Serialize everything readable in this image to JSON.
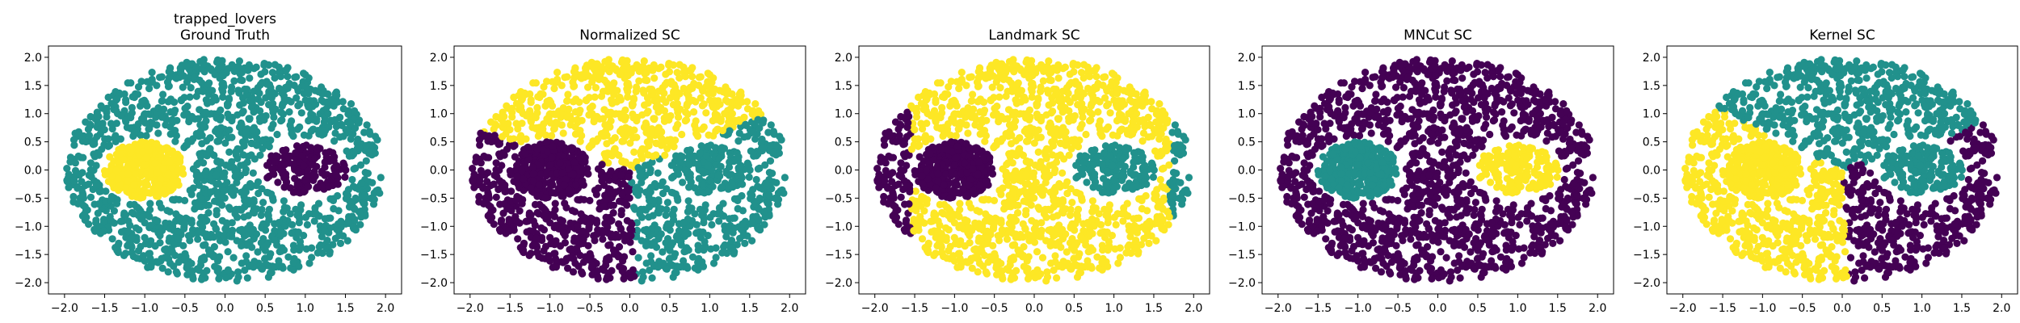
{
  "colors": {
    "purple": "#440154",
    "teal": "#21918c",
    "yellow": "#fde725"
  },
  "chart_data": [
    {
      "type": "scatter",
      "dataset": "trapped_lovers",
      "title": "trapped_lovers",
      "subtitle": "Ground Truth",
      "xlim": [
        -2.2,
        2.2
      ],
      "ylim": [
        -2.2,
        2.2
      ],
      "xticks": [
        "-2.0",
        "-1.5",
        "-1.0",
        "-0.5",
        "0.0",
        "0.5",
        "1.0",
        "1.5",
        "2.0"
      ],
      "yticks": [
        "2.0",
        "1.5",
        "1.0",
        "0.5",
        "0.0",
        "-0.5",
        "-1.0",
        "-1.5",
        "-2.0"
      ],
      "grid": false,
      "regions": [
        {
          "shape": "outer-ring",
          "center": [
            0,
            0
          ],
          "radius": 2.0,
          "color": "teal"
        },
        {
          "shape": "blob",
          "center": [
            -1.0,
            0.0
          ],
          "radius": 0.5,
          "color": "yellow"
        },
        {
          "shape": "blob-sparse",
          "center": [
            1.0,
            0.0
          ],
          "radius": 0.5,
          "color": "purple"
        }
      ]
    },
    {
      "type": "scatter",
      "title": "Normalized SC",
      "xlim": [
        -2.2,
        2.2
      ],
      "ylim": [
        -2.2,
        2.2
      ],
      "xticks": [
        "-2.0",
        "-1.5",
        "-1.0",
        "-0.5",
        "0.0",
        "0.5",
        "1.0",
        "1.5",
        "2.0"
      ],
      "yticks": [
        "2.0",
        "1.5",
        "1.0",
        "0.5",
        "0.0",
        "-0.5",
        "-1.0",
        "-1.5",
        "-2.0"
      ],
      "grid": false,
      "regions": [
        {
          "shape": "sector",
          "from_deg": 30,
          "to_deg": 160,
          "color": "yellow"
        },
        {
          "shape": "sector",
          "from_deg": 160,
          "to_deg": 272,
          "color": "purple"
        },
        {
          "shape": "sector",
          "from_deg": 272,
          "to_deg": 390,
          "color": "teal"
        },
        {
          "shape": "blob",
          "center": [
            -1.0,
            0.0
          ],
          "radius": 0.5,
          "color": "purple"
        },
        {
          "shape": "blob",
          "center": [
            1.0,
            0.0
          ],
          "radius": 0.5,
          "color": "teal"
        }
      ]
    },
    {
      "type": "scatter",
      "title": "Landmark SC",
      "xlim": [
        -2.2,
        2.2
      ],
      "ylim": [
        -2.2,
        2.2
      ],
      "xticks": [
        "-2.0",
        "-1.5",
        "-1.0",
        "-0.5",
        "0.0",
        "0.5",
        "1.0",
        "1.5",
        "2.0"
      ],
      "yticks": [
        "2.0",
        "1.5",
        "1.0",
        "0.5",
        "0.0",
        "-0.5",
        "-1.0",
        "-1.5",
        "-2.0"
      ],
      "grid": false,
      "regions": [
        {
          "shape": "outer-ring",
          "center": [
            0,
            0
          ],
          "radius": 2.0,
          "color": "yellow"
        },
        {
          "shape": "x-band",
          "from_x": -2.1,
          "to_x": -1.55,
          "color": "purple"
        },
        {
          "shape": "x-band",
          "from_x": 1.7,
          "to_x": 2.1,
          "color": "teal"
        },
        {
          "shape": "blob",
          "center": [
            -1.0,
            0.0
          ],
          "radius": 0.5,
          "color": "purple"
        },
        {
          "shape": "blob-sparse",
          "center": [
            1.0,
            0.0
          ],
          "radius": 0.55,
          "color": "teal"
        }
      ]
    },
    {
      "type": "scatter",
      "title": "MNCut SC",
      "xlim": [
        -2.2,
        2.2
      ],
      "ylim": [
        -2.2,
        2.2
      ],
      "xticks": [
        "-2.0",
        "-1.5",
        "-1.0",
        "-0.5",
        "0.0",
        "0.5",
        "1.0",
        "1.5",
        "2.0"
      ],
      "yticks": [
        "2.0",
        "1.5",
        "1.0",
        "0.5",
        "0.0",
        "-0.5",
        "-1.0",
        "-1.5",
        "-2.0"
      ],
      "grid": false,
      "regions": [
        {
          "shape": "outer-ring",
          "center": [
            0,
            0
          ],
          "radius": 2.0,
          "color": "purple"
        },
        {
          "shape": "blob",
          "center": [
            -1.0,
            0.0
          ],
          "radius": 0.5,
          "color": "teal"
        },
        {
          "shape": "blob-sparse",
          "center": [
            1.0,
            0.0
          ],
          "radius": 0.5,
          "color": "yellow"
        }
      ]
    },
    {
      "type": "scatter",
      "title": "Kernel SC",
      "xlim": [
        -2.2,
        2.2
      ],
      "ylim": [
        -2.2,
        2.2
      ],
      "xticks": [
        "-2.0",
        "-1.5",
        "-1.0",
        "-0.5",
        "0.0",
        "0.5",
        "1.0",
        "1.5",
        "2.0"
      ],
      "yticks": [
        "2.0",
        "1.5",
        "1.0",
        "0.5",
        "0.0",
        "-0.5",
        "-1.0",
        "-1.5",
        "-2.0"
      ],
      "grid": false,
      "regions": [
        {
          "shape": "sector",
          "from_deg": 25,
          "to_deg": 145,
          "color": "teal"
        },
        {
          "shape": "sector",
          "from_deg": 145,
          "to_deg": 272,
          "color": "yellow"
        },
        {
          "shape": "sector",
          "from_deg": 272,
          "to_deg": 385,
          "color": "purple"
        },
        {
          "shape": "blob",
          "center": [
            -1.0,
            0.0
          ],
          "radius": 0.5,
          "color": "yellow"
        },
        {
          "shape": "blob-sparse",
          "center": [
            1.0,
            0.0
          ],
          "radius": 0.5,
          "color": "teal"
        }
      ]
    }
  ]
}
